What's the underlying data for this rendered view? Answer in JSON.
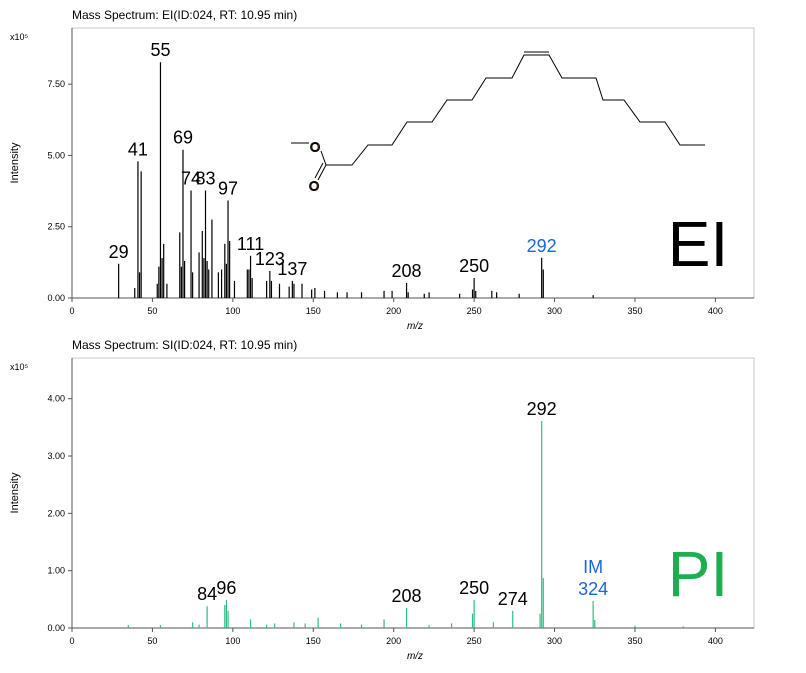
{
  "chart_data": [
    {
      "type": "stem",
      "title": "Mass Spectrum: EI(ID:024, RT: 10.95 min)",
      "xlabel": "m/z",
      "ylabel": "Intensity",
      "y_multiplier": "x10⁵",
      "xlim": [
        0,
        424
      ],
      "xticks": [
        0,
        50,
        100,
        150,
        200,
        250,
        300,
        350,
        400
      ],
      "ylim": [
        0,
        9.47
      ],
      "yticks": [
        {
          "value": 0,
          "label": "0.00"
        },
        {
          "value": 2.5,
          "label": "2.50"
        },
        {
          "value": 5,
          "label": "5.00"
        },
        {
          "value": 7.5,
          "label": "7.50"
        }
      ],
      "series": [
        {
          "color": "#000000",
          "x": [
            29,
            39,
            41,
            42,
            43,
            53,
            54,
            55,
            56,
            57,
            59,
            67,
            68,
            69,
            70,
            74,
            75,
            79,
            81,
            82,
            83,
            84,
            85,
            87,
            91,
            93,
            95,
            96,
            97,
            98,
            101,
            109,
            110,
            111,
            112,
            121,
            123,
            124,
            129,
            135,
            137,
            138,
            143,
            149,
            151,
            157,
            165,
            171,
            180,
            194,
            199,
            208,
            209,
            219,
            222,
            241,
            249,
            250,
            251,
            261,
            264,
            278,
            292,
            293,
            324
          ],
          "values": [
            1.2,
            0.35,
            4.79,
            0.9,
            4.44,
            0.5,
            1.1,
            8.27,
            1.4,
            1.9,
            0.5,
            2.3,
            1.1,
            5.2,
            1.3,
            3.77,
            0.9,
            1.6,
            2.35,
            1.4,
            3.77,
            1.3,
            1.0,
            2.75,
            0.9,
            1.0,
            1.9,
            1.2,
            3.42,
            2.0,
            0.6,
            1.0,
            1.0,
            1.48,
            0.7,
            0.6,
            0.95,
            0.6,
            0.5,
            0.4,
            0.6,
            0.5,
            0.5,
            0.3,
            0.35,
            0.25,
            0.2,
            0.2,
            0.2,
            0.25,
            0.25,
            0.53,
            0.2,
            0.15,
            0.2,
            0.15,
            0.3,
            0.7,
            0.25,
            0.25,
            0.2,
            0.15,
            1.41,
            1.0,
            0.1
          ]
        }
      ],
      "annotations": [
        {
          "lines": [
            "29"
          ],
          "x": 29
        },
        {
          "lines": [
            "41"
          ],
          "x": 41
        },
        {
          "lines": [
            "55"
          ],
          "x": 55
        },
        {
          "lines": [
            "69"
          ],
          "x": 69
        },
        {
          "lines": [
            "74"
          ],
          "x": 74
        },
        {
          "lines": [
            "83"
          ],
          "x": 83
        },
        {
          "lines": [
            "97"
          ],
          "x": 97
        },
        {
          "lines": [
            "111"
          ],
          "x": 111
        },
        {
          "lines": [
            "123"
          ],
          "x": 123
        },
        {
          "lines": [
            "137"
          ],
          "x": 137
        },
        {
          "lines": [
            "208"
          ],
          "x": 208
        },
        {
          "lines": [
            "250"
          ],
          "x": 250
        },
        {
          "lines": [
            "292"
          ],
          "x": 292,
          "color": "#1a66e0"
        }
      ],
      "tag": "EI",
      "tag_color": "#000000"
    },
    {
      "type": "stem",
      "title": "Mass Spectrum: SI(ID:024, RT: 10.95 min)",
      "xlabel": "m/z",
      "ylabel": "Intensity",
      "y_multiplier": "x10⁵",
      "xlim": [
        0,
        424
      ],
      "xticks": [
        0,
        50,
        100,
        150,
        200,
        250,
        300,
        350,
        400
      ],
      "ylim": [
        0,
        4.71
      ],
      "yticks": [
        {
          "value": 0,
          "label": "0.00"
        },
        {
          "value": 1,
          "label": "1.00"
        },
        {
          "value": 2,
          "label": "2.00"
        },
        {
          "value": 3,
          "label": "3.00"
        },
        {
          "value": 4,
          "label": "4.00"
        }
      ],
      "series": [
        {
          "color": "#2ebd85",
          "x": [
            35,
            55,
            75,
            79,
            84,
            95,
            96,
            97,
            111,
            121,
            126,
            138,
            145,
            153,
            167,
            180,
            194,
            208,
            222,
            236,
            249,
            250,
            262,
            274,
            291,
            292,
            293,
            324,
            325,
            350,
            380
          ],
          "values": [
            0.05,
            0.05,
            0.1,
            0.06,
            0.38,
            0.4,
            0.49,
            0.3,
            0.15,
            0.06,
            0.08,
            0.1,
            0.08,
            0.18,
            0.08,
            0.06,
            0.15,
            0.35,
            0.05,
            0.08,
            0.25,
            0.49,
            0.1,
            0.3,
            0.25,
            3.61,
            0.87,
            0.47,
            0.14,
            0.04,
            0.03
          ]
        }
      ],
      "annotations": [
        {
          "lines": [
            "84"
          ],
          "x": 84
        },
        {
          "lines": [
            "96"
          ],
          "x": 96
        },
        {
          "lines": [
            "208"
          ],
          "x": 208
        },
        {
          "lines": [
            "250"
          ],
          "x": 250
        },
        {
          "lines": [
            "274"
          ],
          "x": 274
        },
        {
          "lines": [
            "292"
          ],
          "x": 292
        },
        {
          "lines": [
            "IM",
            "324"
          ],
          "x": 324,
          "color": "#1a66e0"
        }
      ],
      "tag": "PI",
      "tag_color": "#1fae4f"
    }
  ]
}
